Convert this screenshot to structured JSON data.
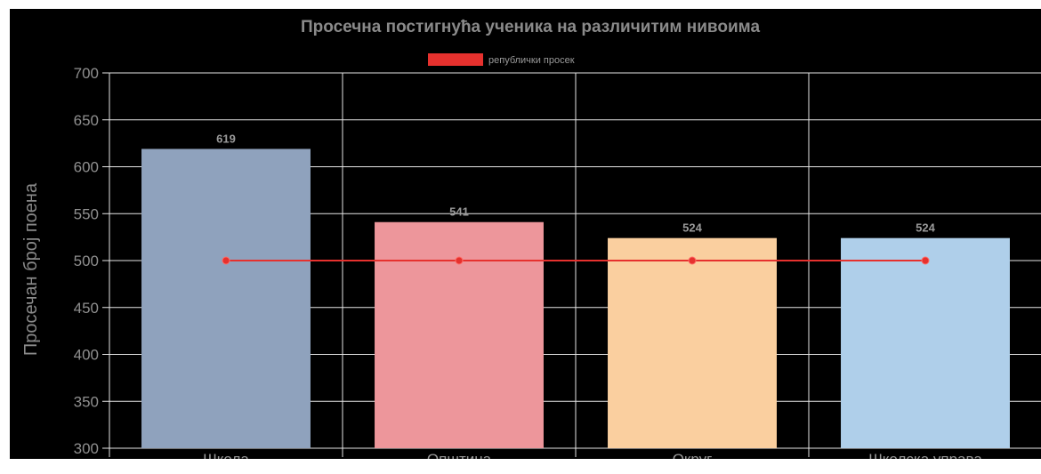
{
  "chart_data": {
    "type": "bar",
    "title": "Просечна постигнућа ученика на различитим нивоима",
    "ylabel": "Просечан број поена",
    "xlabel": "",
    "ylim": [
      300,
      700
    ],
    "yticks": [
      300,
      350,
      400,
      450,
      500,
      550,
      600,
      650,
      700
    ],
    "categories": [
      "Школа",
      "Општина",
      "Округ",
      "Школска управа"
    ],
    "values": [
      619,
      541,
      524,
      524
    ],
    "bar_colors": [
      "#8fa2bd",
      "#ed969b",
      "#facf9f",
      "#afcfea"
    ],
    "line_series": {
      "name": "републички просек",
      "values": [
        500,
        500,
        500,
        500
      ],
      "color": "#e6312e"
    },
    "legend_position": "top",
    "grid": true,
    "background": "#000000",
    "grid_color": "#e5e5e5"
  }
}
